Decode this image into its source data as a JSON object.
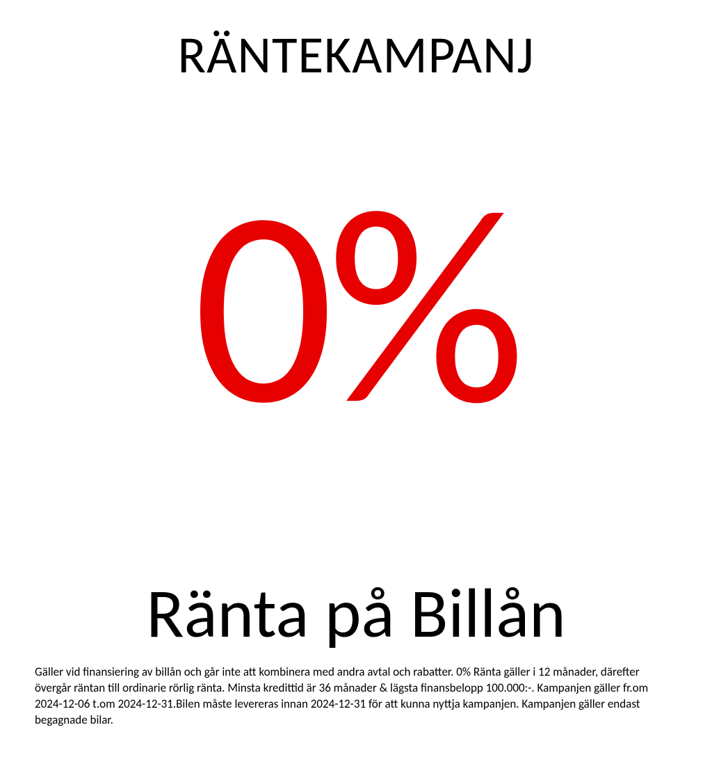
{
  "campaign": {
    "title": "RÄNTEKAMPANJ",
    "hero_value": "0%",
    "hero_color": "#e60000",
    "subtitle": "Ränta på Billån",
    "fineprint": "Gäller vid finansiering av billån och går inte att kombinera med andra avtal och rabatter. 0% Ränta gäller i 12 månader, därefter övergår räntan till ordinarie rörlig ränta. Minsta kredittid är 36 månader & lägsta finansbelopp 100.000:-. Kampanjen gäller fr.om 2024-12-06 t.om 2024-12-31.Bilen måste levereras innan 2024-12-31 för att kunna nyttja kampanjen. Kampanjen gäller endast begagnade bilar.",
    "background_color": "#ffffff",
    "text_color": "#000000",
    "title_fontsize": 75,
    "hero_fontsize": 400,
    "subtitle_fontsize": 100,
    "fineprint_fontsize": 17
  }
}
